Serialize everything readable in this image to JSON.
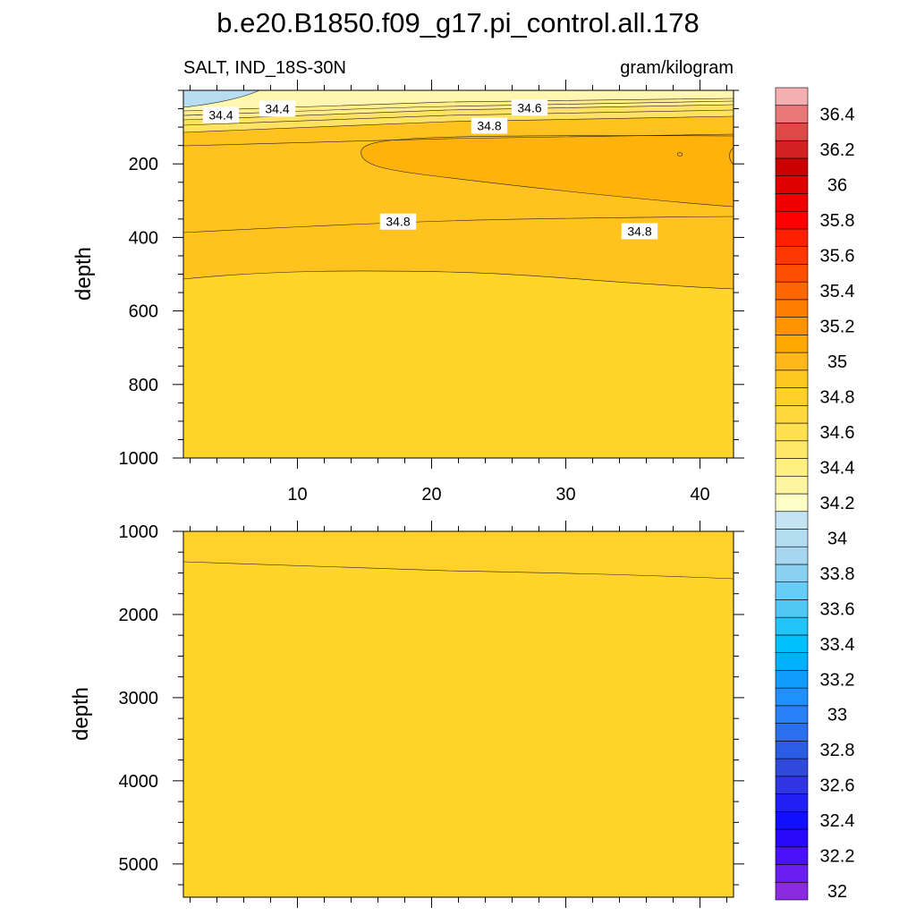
{
  "chart_data": {
    "type": "contour",
    "title": "b.e20.B1850.f09_g17.pi_control.all.178",
    "variable_label": "SALT, IND_18S-30N",
    "units_label": "gram/kilogram",
    "ylabel": "depth",
    "x_tick_labels": [
      "10",
      "20",
      "30",
      "40"
    ],
    "x_ticks": [
      10,
      20,
      30,
      40
    ],
    "xlim": [
      1.5,
      42.5
    ],
    "panels": [
      {
        "id": "upper",
        "ylim": [
          0,
          1000
        ],
        "y_ticks": [
          200,
          400,
          600,
          800,
          1000
        ],
        "y_tick_labels": [
          "200",
          "400",
          "600",
          "800",
          "1000"
        ],
        "contour_labels": [
          {
            "text": "34.4",
            "x": 4.3,
            "depth": 67
          },
          {
            "text": "34.4",
            "x": 8.5,
            "depth": 50
          },
          {
            "text": "34.6",
            "x": 27.3,
            "depth": 47
          },
          {
            "text": "34.8",
            "x": 24.3,
            "depth": 96
          },
          {
            "text": "34.8",
            "x": 17.5,
            "depth": 357
          },
          {
            "text": "34.8",
            "x": 35.5,
            "depth": 383
          }
        ]
      },
      {
        "id": "lower",
        "ylim": [
          1000,
          5400
        ],
        "y_ticks": [
          1000,
          2000,
          3000,
          4000,
          5000
        ],
        "y_tick_labels": [
          "1000",
          "2000",
          "3000",
          "4000",
          "5000"
        ],
        "contour_labels": []
      }
    ],
    "colorbar": {
      "levels": [
        32,
        32.1,
        32.2,
        32.3,
        32.4,
        32.5,
        32.6,
        32.7,
        32.8,
        32.9,
        33,
        33.1,
        33.2,
        33.3,
        33.4,
        33.5,
        33.6,
        33.7,
        33.8,
        33.9,
        34,
        34.1,
        34.2,
        34.3,
        34.4,
        34.5,
        34.6,
        34.7,
        34.8,
        34.9,
        35,
        35.1,
        35.2,
        35.3,
        35.4,
        35.5,
        35.6,
        35.7,
        35.8,
        35.9,
        36,
        36.1,
        36.2,
        36.3,
        36.4,
        36.5
      ],
      "tick_labels": [
        "32",
        "32.2",
        "32.4",
        "32.6",
        "32.8",
        "33",
        "33.2",
        "33.4",
        "33.6",
        "33.8",
        "34",
        "34.2",
        "34.4",
        "34.6",
        "34.8",
        "35",
        "35.2",
        "35.4",
        "35.6",
        "35.8",
        "36",
        "36.2",
        "36.4"
      ],
      "colors": [
        "#8a2be2",
        "#6a1ef2",
        "#4a10f8",
        "#2a08fc",
        "#1010ff",
        "#2020f2",
        "#3035e4",
        "#3048dc",
        "#2b5ce4",
        "#2a6ff0",
        "#2a80f6",
        "#1e90ff",
        "#109cfc",
        "#00b2fc",
        "#00c0ff",
        "#20c4f6",
        "#50c8f6",
        "#68ccf6",
        "#8ad0f0",
        "#a6d6f0",
        "#b4dcf0",
        "#c4e4f4",
        "#ffffc8",
        "#fff5a0",
        "#fff080",
        "#ffe868",
        "#ffe050",
        "#ffd83a",
        "#ffd02a",
        "#ffc820",
        "#ffb81a",
        "#ffa800",
        "#ff9400",
        "#ff7e00",
        "#ff6800",
        "#ff4e00",
        "#ff3800",
        "#ff2000",
        "#ff0000",
        "#ee0000",
        "#dd0000",
        "#cc0000",
        "#d42020",
        "#e04848",
        "#ea7878",
        "#f4b0b0"
      ]
    }
  }
}
